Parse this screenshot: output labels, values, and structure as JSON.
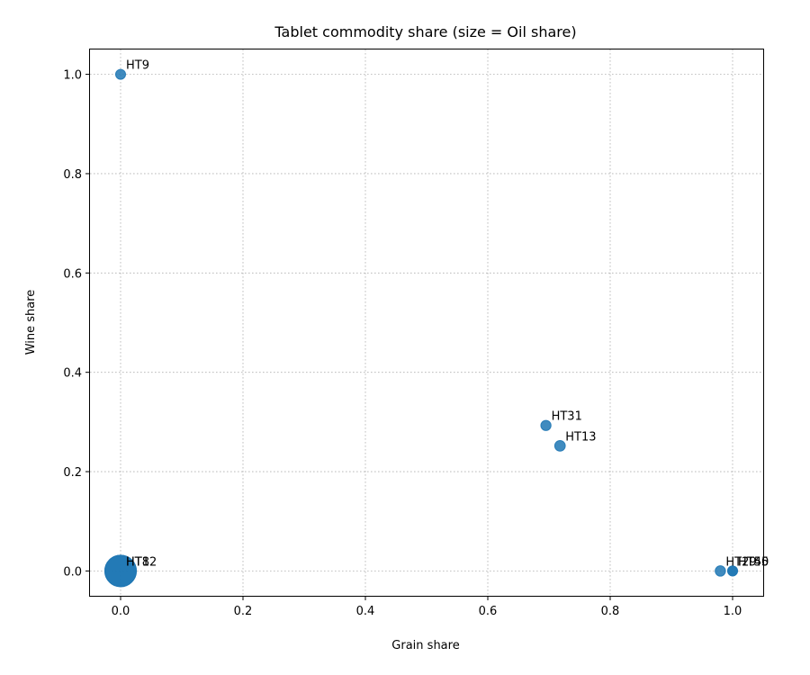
{
  "chart_data": {
    "type": "scatter",
    "title": "Tablet commodity share (size = Oil share)",
    "xlabel": "Grain share",
    "ylabel": "Wine share",
    "xlim": [
      -0.05,
      1.05
    ],
    "ylim": [
      -0.05,
      1.05
    ],
    "xticks": [
      0.0,
      0.2,
      0.4,
      0.6,
      0.8,
      1.0
    ],
    "xtick_labels": [
      "0.0",
      "0.2",
      "0.4",
      "0.6",
      "0.8",
      "1.0"
    ],
    "yticks": [
      0.0,
      0.2,
      0.4,
      0.6,
      0.8,
      1.0
    ],
    "ytick_labels": [
      "0.0",
      "0.2",
      "0.4",
      "0.6",
      "0.8",
      "1.0"
    ],
    "grid": true,
    "point_color": "#1f77b4",
    "points": [
      {
        "label": "HT9",
        "grain": 0.0,
        "wine": 1.0,
        "oil": 0.0
      },
      {
        "label": "HT31",
        "grain": 0.695,
        "wine": 0.293,
        "oil": 0.012
      },
      {
        "label": "HT13",
        "grain": 0.718,
        "wine": 0.252,
        "oil": 0.03
      },
      {
        "label": "HT8",
        "grain": 0.0,
        "wine": 0.0,
        "oil": 1.0
      },
      {
        "label": "HT12",
        "grain": 0.0,
        "wine": 0.0,
        "oil": 1.0
      },
      {
        "label": "HT29",
        "grain": 0.98,
        "wine": 0.0,
        "oil": 0.02
      },
      {
        "label": "HT45",
        "grain": 1.0,
        "wine": 0.0,
        "oil": 0.0
      },
      {
        "label": "HT50",
        "grain": 1.0,
        "wine": 0.0,
        "oil": 0.0
      }
    ]
  }
}
